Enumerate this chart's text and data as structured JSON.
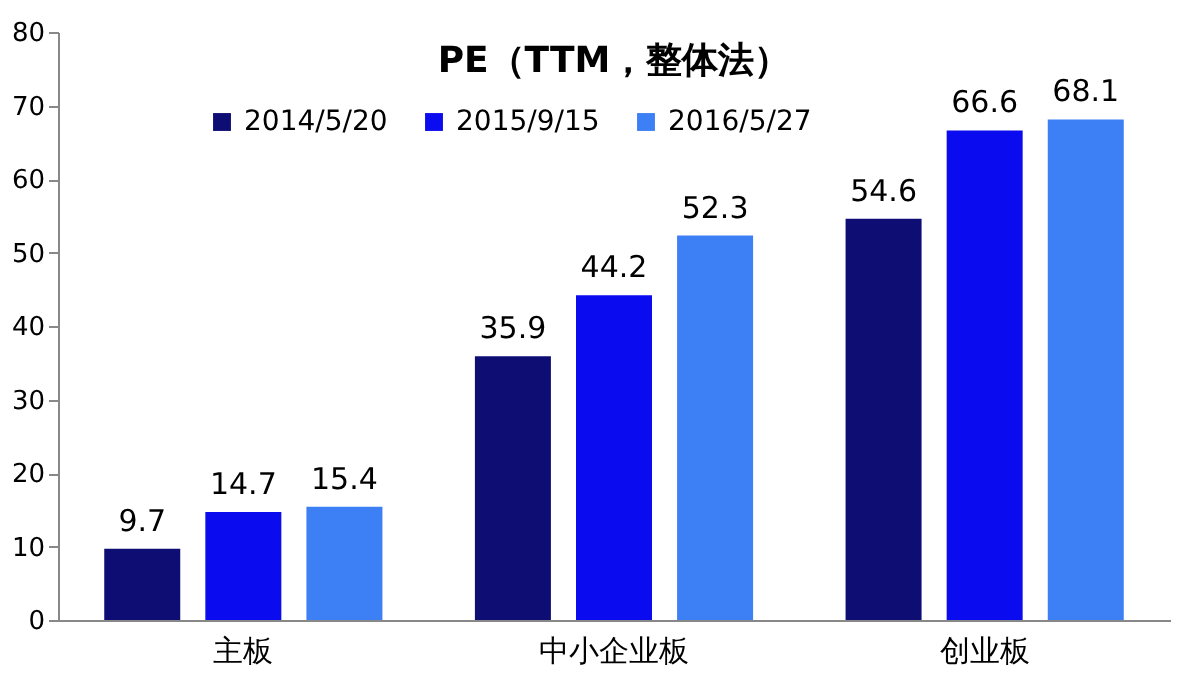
{
  "chart_data": {
    "type": "bar",
    "title": "PE（TTM，整体法）",
    "categories": [
      "主板",
      "中小企业板",
      "创业板"
    ],
    "series": [
      {
        "name": "2014/5/20",
        "color": "#0d0d73",
        "values": [
          9.7,
          35.9,
          54.6
        ]
      },
      {
        "name": "2015/9/15",
        "color": "#0b0bf0",
        "values": [
          14.7,
          44.2,
          66.6
        ]
      },
      {
        "name": "2016/5/27",
        "color": "#3d7ff5",
        "values": [
          15.4,
          52.3,
          68.1
        ]
      }
    ],
    "ylim": [
      0,
      80
    ],
    "yticks": [
      0,
      10,
      20,
      30,
      40,
      50,
      60,
      70,
      80
    ],
    "grid": false,
    "legend": "top",
    "data_labels": true
  }
}
